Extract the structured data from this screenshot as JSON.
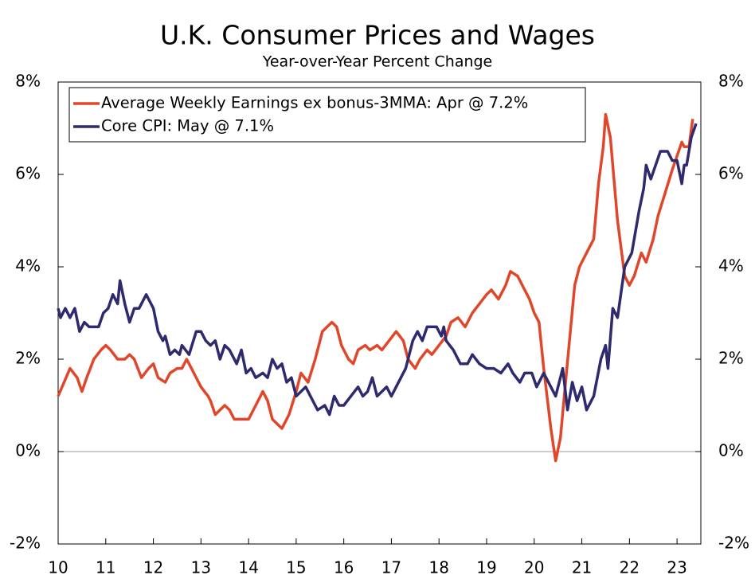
{
  "chart_data": {
    "type": "line",
    "title": "U.K. Consumer Prices and Wages",
    "subtitle": "Year-over-Year Percent Change",
    "xlim": [
      2010,
      2023.5
    ],
    "xticks": [
      {
        "value": 2010,
        "label": "10"
      },
      {
        "value": 2011,
        "label": "11"
      },
      {
        "value": 2012,
        "label": "12"
      },
      {
        "value": 2013,
        "label": "13"
      },
      {
        "value": 2014,
        "label": "14"
      },
      {
        "value": 2015,
        "label": "15"
      },
      {
        "value": 2016,
        "label": "16"
      },
      {
        "value": 2017,
        "label": "17"
      },
      {
        "value": 2018,
        "label": "18"
      },
      {
        "value": 2019,
        "label": "19"
      },
      {
        "value": 2020,
        "label": "20"
      },
      {
        "value": 2021,
        "label": "21"
      },
      {
        "value": 2022,
        "label": "22"
      },
      {
        "value": 2023,
        "label": "23"
      }
    ],
    "ylim": [
      -2,
      8
    ],
    "yticks": [
      {
        "value": -2,
        "label": "-2%"
      },
      {
        "value": 0,
        "label": "0%"
      },
      {
        "value": 2,
        "label": "2%"
      },
      {
        "value": 4,
        "label": "4%"
      },
      {
        "value": 6,
        "label": "6%"
      },
      {
        "value": 8,
        "label": "8%"
      }
    ],
    "zero_line": true,
    "legend": "top-left",
    "series": [
      {
        "name": "Average Weekly Earnings ex bonus-3MMA: Apr @ 7.2%",
        "color": "#e0472a",
        "x": [
          2010.0,
          2010.25,
          2010.4,
          2010.5,
          2010.6,
          2010.75,
          2010.9,
          2011.0,
          2011.1,
          2011.25,
          2011.4,
          2011.5,
          2011.6,
          2011.75,
          2011.9,
          2012.0,
          2012.1,
          2012.25,
          2012.35,
          2012.5,
          2012.6,
          2012.7,
          2012.8,
          2013.0,
          2013.15,
          2013.2,
          2013.3,
          2013.4,
          2013.5,
          2013.6,
          2013.7,
          2014.0,
          2014.15,
          2014.3,
          2014.4,
          2014.5,
          2014.6,
          2014.7,
          2014.85,
          2015.0,
          2015.1,
          2015.25,
          2015.4,
          2015.55,
          2015.65,
          2015.75,
          2015.85,
          2015.95,
          2016.1,
          2016.2,
          2016.3,
          2016.45,
          2016.55,
          2016.7,
          2016.8,
          2016.95,
          2017.1,
          2017.25,
          2017.35,
          2017.5,
          2017.6,
          2017.75,
          2017.85,
          2018.0,
          2018.15,
          2018.25,
          2018.4,
          2018.55,
          2018.7,
          2018.85,
          2019.0,
          2019.1,
          2019.25,
          2019.4,
          2019.5,
          2019.65,
          2019.8,
          2019.9,
          2020.0,
          2020.1,
          2020.2,
          2020.35,
          2020.45,
          2020.55,
          2020.65,
          2020.75,
          2020.85,
          2020.95,
          2021.1,
          2021.25,
          2021.35,
          2021.45,
          2021.5,
          2021.6,
          2021.75,
          2021.9,
          2022.0,
          2022.1,
          2022.25,
          2022.35,
          2022.5,
          2022.6,
          2022.75,
          2022.9,
          2023.0,
          2023.1,
          2023.15,
          2023.25,
          2023.33
        ],
        "values": [
          1.2,
          1.8,
          1.6,
          1.3,
          1.6,
          2.0,
          2.2,
          2.3,
          2.2,
          2.0,
          2.0,
          2.1,
          2.0,
          1.6,
          1.8,
          1.9,
          1.6,
          1.5,
          1.7,
          1.8,
          1.8,
          2.0,
          1.8,
          1.4,
          1.2,
          1.1,
          0.8,
          0.9,
          1.0,
          0.9,
          0.7,
          0.7,
          1.0,
          1.3,
          1.1,
          0.7,
          0.6,
          0.5,
          0.8,
          1.3,
          1.7,
          1.5,
          2.0,
          2.6,
          2.7,
          2.8,
          2.7,
          2.3,
          2.0,
          1.9,
          2.2,
          2.3,
          2.2,
          2.3,
          2.2,
          2.4,
          2.6,
          2.4,
          2.0,
          1.8,
          2.0,
          2.2,
          2.1,
          2.3,
          2.5,
          2.8,
          2.9,
          2.7,
          3.0,
          3.2,
          3.4,
          3.5,
          3.3,
          3.6,
          3.9,
          3.8,
          3.5,
          3.3,
          3.0,
          2.8,
          1.8,
          0.5,
          -0.2,
          0.3,
          1.4,
          2.5,
          3.6,
          4.0,
          4.3,
          4.6,
          5.8,
          6.6,
          7.3,
          6.8,
          5.0,
          3.8,
          3.6,
          3.8,
          4.3,
          4.1,
          4.6,
          5.1,
          5.6,
          6.1,
          6.4,
          6.7,
          6.6,
          6.6,
          7.2
        ]
      },
      {
        "name": "Core CPI: May @ 7.1%",
        "color": "#2e2a6e",
        "x": [
          2010.0,
          2010.05,
          2010.15,
          2010.25,
          2010.35,
          2010.45,
          2010.55,
          2010.65,
          2010.75,
          2010.85,
          2010.95,
          2011.05,
          2011.15,
          2011.25,
          2011.3,
          2011.4,
          2011.5,
          2011.6,
          2011.7,
          2011.85,
          2012.0,
          2012.1,
          2012.2,
          2012.25,
          2012.35,
          2012.45,
          2012.55,
          2012.6,
          2012.75,
          2012.9,
          2013.0,
          2013.1,
          2013.2,
          2013.3,
          2013.4,
          2013.5,
          2013.6,
          2013.75,
          2013.85,
          2013.95,
          2014.05,
          2014.15,
          2014.3,
          2014.4,
          2014.5,
          2014.6,
          2014.7,
          2014.8,
          2014.9,
          2015.0,
          2015.1,
          2015.2,
          2015.3,
          2015.45,
          2015.6,
          2015.7,
          2015.8,
          2015.9,
          2016.0,
          2016.15,
          2016.3,
          2016.4,
          2016.5,
          2016.6,
          2016.7,
          2016.8,
          2016.9,
          2017.0,
          2017.2,
          2017.3,
          2017.45,
          2017.55,
          2017.65,
          2017.75,
          2017.95,
          2018.05,
          2018.1,
          2018.15,
          2018.3,
          2018.45,
          2018.6,
          2018.7,
          2018.85,
          2019.0,
          2019.15,
          2019.3,
          2019.45,
          2019.55,
          2019.7,
          2019.8,
          2019.95,
          2020.05,
          2020.2,
          2020.35,
          2020.45,
          2020.6,
          2020.7,
          2020.8,
          2020.9,
          2021.0,
          2021.1,
          2021.25,
          2021.4,
          2021.5,
          2021.55,
          2021.65,
          2021.75,
          2021.9,
          2022.05,
          2022.2,
          2022.3,
          2022.35,
          2022.45,
          2022.55,
          2022.65,
          2022.8,
          2022.9,
          2023.0,
          2023.1,
          2023.15,
          2023.2,
          2023.3,
          2023.4
        ],
        "values": [
          3.1,
          2.9,
          3.1,
          2.9,
          3.1,
          2.6,
          2.8,
          2.7,
          2.7,
          2.7,
          3.0,
          3.1,
          3.4,
          3.2,
          3.7,
          3.2,
          2.8,
          3.1,
          3.1,
          3.4,
          3.1,
          2.6,
          2.4,
          2.5,
          2.1,
          2.2,
          2.1,
          2.3,
          2.1,
          2.6,
          2.6,
          2.4,
          2.3,
          2.4,
          2.0,
          2.3,
          2.2,
          1.9,
          2.2,
          1.7,
          1.8,
          1.6,
          1.7,
          1.6,
          2.0,
          1.8,
          1.9,
          1.5,
          1.6,
          1.2,
          1.3,
          1.4,
          1.2,
          0.9,
          1.0,
          0.8,
          1.2,
          1.0,
          1.0,
          1.2,
          1.4,
          1.2,
          1.3,
          1.6,
          1.2,
          1.3,
          1.4,
          1.2,
          1.6,
          1.8,
          2.4,
          2.6,
          2.4,
          2.7,
          2.7,
          2.5,
          2.7,
          2.4,
          2.2,
          1.9,
          1.9,
          2.1,
          1.9,
          1.8,
          1.8,
          1.7,
          1.9,
          1.7,
          1.5,
          1.7,
          1.7,
          1.4,
          1.7,
          1.4,
          1.2,
          1.8,
          0.9,
          1.5,
          1.1,
          1.4,
          0.9,
          1.2,
          2.0,
          2.3,
          1.8,
          3.1,
          2.9,
          4.0,
          4.3,
          5.2,
          5.7,
          6.2,
          5.9,
          6.2,
          6.5,
          6.5,
          6.3,
          6.3,
          5.8,
          6.2,
          6.2,
          6.8,
          7.1
        ]
      }
    ]
  }
}
